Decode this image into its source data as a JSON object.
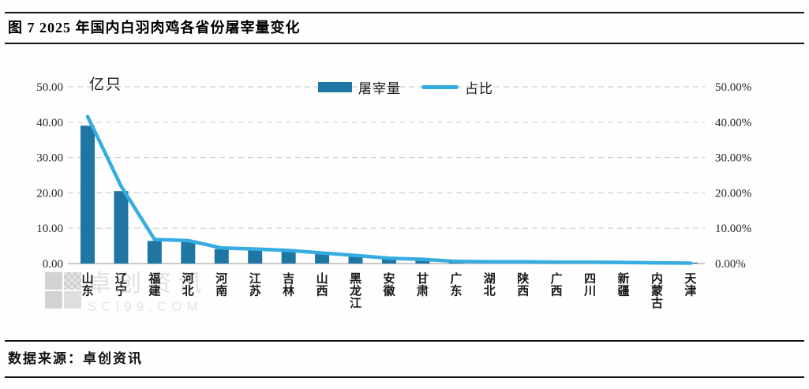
{
  "header": {
    "title": "图 7 2025 年国内白羽肉鸡各省份屠宰量变化"
  },
  "footer": {
    "source": "数据来源：卓创资讯"
  },
  "watermark": {
    "brand": "卓创资讯",
    "domain": "SCI99.COM"
  },
  "chart_data": {
    "type": "bar",
    "title": "2025 年国内白羽肉鸡各省份屠宰量变化",
    "unit_label": "亿只",
    "categories": [
      "山东",
      "辽宁",
      "福建",
      "河北",
      "河南",
      "江苏",
      "吉林",
      "山西",
      "黑龙江",
      "安徽",
      "甘肃",
      "广东",
      "湖北",
      "陕西",
      "广西",
      "四川",
      "新疆",
      "内蒙古",
      "天津"
    ],
    "series": [
      {
        "name": "屠宰量",
        "type": "bar",
        "axis": "left",
        "color": "#1f76a3",
        "values": [
          39.0,
          20.5,
          6.4,
          6.1,
          4.1,
          3.8,
          3.5,
          2.8,
          2.2,
          1.4,
          1.1,
          0.6,
          0.5,
          0.45,
          0.4,
          0.35,
          0.3,
          0.15,
          0.08
        ]
      },
      {
        "name": "占比",
        "type": "line",
        "axis": "right",
        "color": "#36ace0",
        "values": [
          41.6,
          21.9,
          6.8,
          6.5,
          4.4,
          4.1,
          3.7,
          3.0,
          2.3,
          1.5,
          1.2,
          0.6,
          0.5,
          0.5,
          0.4,
          0.4,
          0.3,
          0.2,
          0.1
        ]
      }
    ],
    "left_axis": {
      "min": 0,
      "max": 50,
      "ticks": [
        "0.00",
        "10.00",
        "20.00",
        "30.00",
        "40.00",
        "50.00"
      ]
    },
    "right_axis": {
      "min": 0,
      "max": 50,
      "ticks": [
        "0.00%",
        "10.00%",
        "20.00%",
        "30.00%",
        "40.00%",
        "50.00%"
      ]
    },
    "grid": {
      "style": "dashed-horizontal",
      "color": "#cfcfcf",
      "baseline_color": "#b8b8b8"
    },
    "legend_position": "top-center"
  }
}
